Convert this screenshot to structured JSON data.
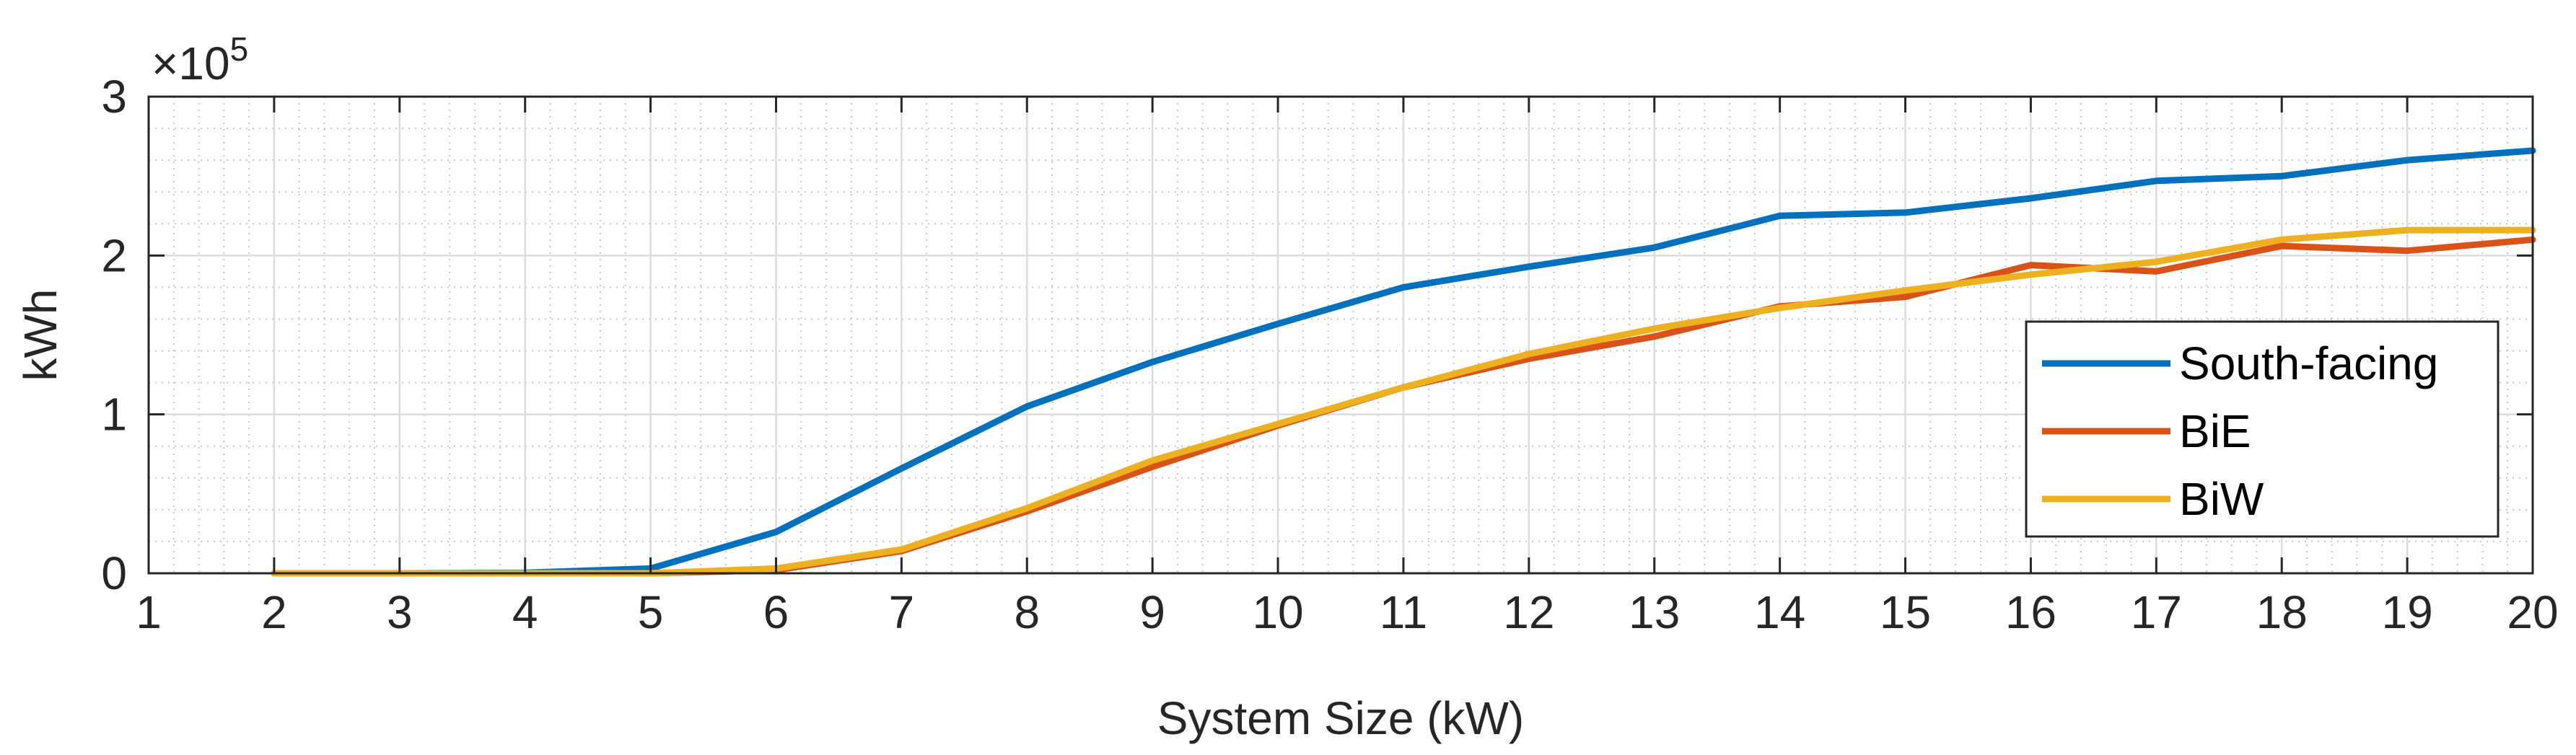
{
  "chart_data": {
    "type": "line",
    "title": "",
    "xlabel": "System Size (kW)",
    "ylabel": "kWh",
    "y_exponent_label": "×10",
    "y_exponent_power": "5",
    "y_multiplier": 100000,
    "xlim": [
      1,
      20
    ],
    "ylim": [
      0,
      3
    ],
    "xticks": [
      1,
      2,
      3,
      4,
      5,
      6,
      7,
      8,
      9,
      10,
      11,
      12,
      13,
      14,
      15,
      16,
      17,
      18,
      19,
      20
    ],
    "yticks": [
      0,
      1,
      2,
      3
    ],
    "grid": true,
    "minor_grid": true,
    "legend_position": "right",
    "x": [
      2,
      3,
      4,
      5,
      6,
      7,
      8,
      9,
      10,
      11,
      12,
      13,
      14,
      15,
      16,
      17,
      18,
      19,
      20
    ],
    "series": [
      {
        "name": "South-facing",
        "color": "#0072BD",
        "values": [
          0,
          0,
          0.003,
          0.03,
          0.26,
          0.66,
          1.05,
          1.33,
          1.57,
          1.8,
          1.93,
          2.05,
          2.25,
          2.27,
          2.36,
          2.47,
          2.5,
          2.6,
          2.66
        ]
      },
      {
        "name": "BiE",
        "color": "#D95319",
        "values": [
          0,
          0,
          0,
          0,
          0.02,
          0.14,
          0.39,
          0.67,
          0.93,
          1.17,
          1.35,
          1.49,
          1.68,
          1.74,
          1.94,
          1.9,
          2.06,
          2.03,
          2.1
        ]
      },
      {
        "name": "BiW",
        "color": "#EDB120",
        "values": [
          0,
          0,
          0,
          0,
          0.03,
          0.15,
          0.41,
          0.71,
          0.94,
          1.17,
          1.38,
          1.54,
          1.67,
          1.78,
          1.88,
          1.96,
          2.1,
          2.16,
          2.16
        ]
      }
    ]
  }
}
